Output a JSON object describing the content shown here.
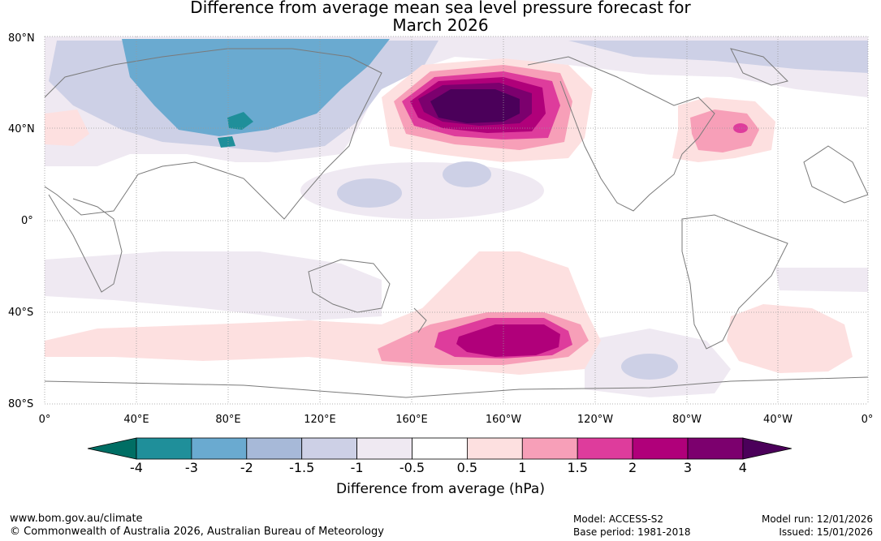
{
  "title_line1": "Difference from average mean sea level pressure forecast for",
  "title_line2": "March 2026",
  "lat_labels": [
    "80°N",
    "40°N",
    "0°",
    "40°S",
    "80°S"
  ],
  "lon_labels": [
    "0°",
    "40°E",
    "80°E",
    "120°E",
    "160°E",
    "160°W",
    "120°W",
    "80°W",
    "40°W",
    "0°"
  ],
  "colorbar": {
    "tick_labels": [
      "-4",
      "-3",
      "-2",
      "-1.5",
      "-1",
      "-0.5",
      "0.5",
      "1",
      "1.5",
      "2",
      "3",
      "4"
    ],
    "colors": [
      "#006e64",
      "#1f8f9a",
      "#6aaad0",
      "#a7b9d8",
      "#cdd0e6",
      "#efe9f2",
      "#ffffff",
      "#fde0e0",
      "#f79fb8",
      "#de3c9c",
      "#b0007a",
      "#7c006e",
      "#4b005a"
    ],
    "title": "Difference from average (hPa)"
  },
  "footer": {
    "url": "www.bom.gov.au/climate",
    "copyright": "© Commonwealth of Australia 2026, Australian Bureau of Meteorology",
    "model": "Model: ACCESS-S2",
    "base_period": "Base period: 1981-2018",
    "model_run": "Model run: 12/01/2026",
    "issued": "Issued: 15/01/2026"
  }
}
